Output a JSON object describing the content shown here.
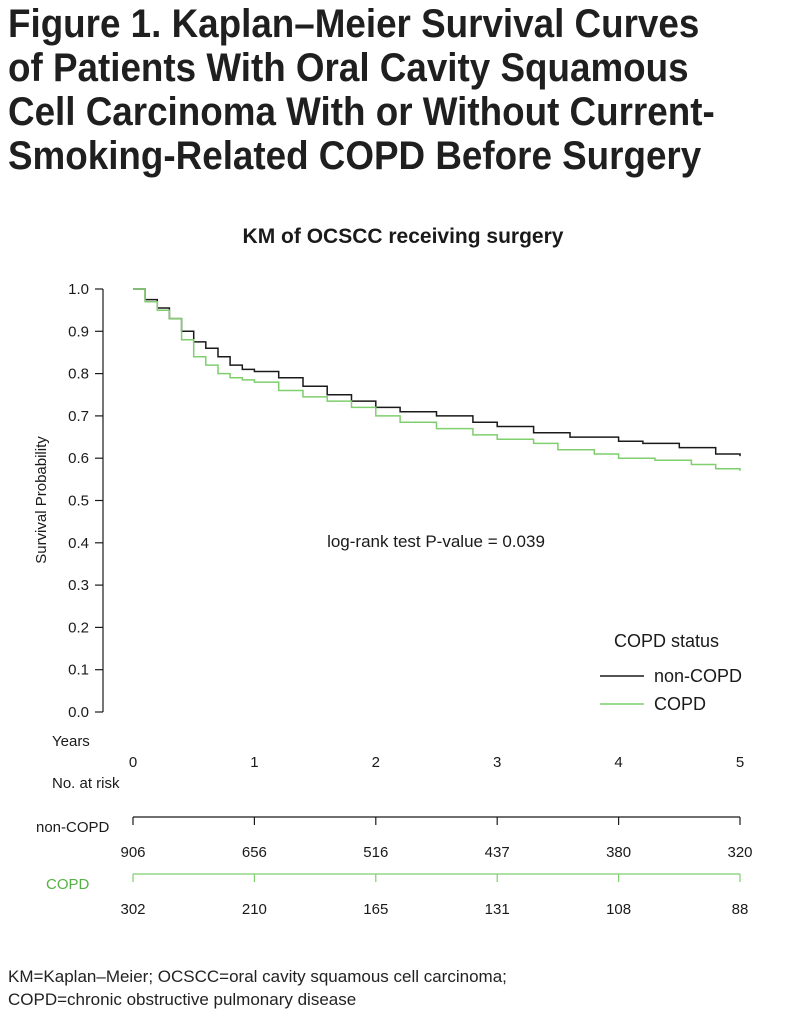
{
  "figure": {
    "title": "Figure 1. Kaplan–Meier Survival Curves of Patients With Oral Cavity Squamous Cell Carcinoma With or Without Current-Smoking-Related COPD Before Surgery",
    "footnote_lines": [
      "KM=Kaplan–Meier; OCSCC=oral cavity squamous cell carcinoma;",
      "COPD=chronic obstructive pulmonary disease"
    ]
  },
  "chart_data": {
    "type": "line",
    "subtype": "kaplan-meier step",
    "title": "KM of OCSCC receiving surgery",
    "xlabel": "Years",
    "ylabel": "Survival Probability",
    "xlim": [
      0,
      5
    ],
    "ylim": [
      0,
      1
    ],
    "xticks": [
      "0",
      "1",
      "2",
      "3",
      "4",
      "5"
    ],
    "yticks": [
      "0.0",
      "0.1",
      "0.2",
      "0.3",
      "0.4",
      "0.5",
      "0.6",
      "0.7",
      "0.8",
      "0.9",
      "1.0"
    ],
    "grid": false,
    "annotation": "log-rank test P-value = 0.039",
    "legend": {
      "title": "COPD status",
      "position": "bottom-right",
      "entries": [
        {
          "label": "non-COPD",
          "color": "#1a1a1a"
        },
        {
          "label": "COPD",
          "color": "#7fcf6e"
        }
      ]
    },
    "series": [
      {
        "name": "non-COPD",
        "color": "#1a1a1a",
        "x": [
          0,
          0.1,
          0.2,
          0.3,
          0.4,
          0.5,
          0.6,
          0.7,
          0.8,
          0.9,
          1.0,
          1.2,
          1.4,
          1.6,
          1.8,
          2.0,
          2.2,
          2.5,
          2.8,
          3.0,
          3.3,
          3.6,
          4.0,
          4.2,
          4.5,
          4.8,
          5.0
        ],
        "y": [
          1.0,
          0.975,
          0.955,
          0.93,
          0.9,
          0.875,
          0.86,
          0.84,
          0.82,
          0.81,
          0.805,
          0.79,
          0.77,
          0.75,
          0.735,
          0.72,
          0.71,
          0.7,
          0.685,
          0.675,
          0.66,
          0.65,
          0.64,
          0.635,
          0.625,
          0.61,
          0.605
        ]
      },
      {
        "name": "COPD",
        "color": "#7fcf6e",
        "x": [
          0,
          0.1,
          0.2,
          0.3,
          0.4,
          0.5,
          0.6,
          0.7,
          0.8,
          0.9,
          1.0,
          1.2,
          1.4,
          1.6,
          1.8,
          2.0,
          2.2,
          2.5,
          2.8,
          3.0,
          3.3,
          3.5,
          3.8,
          4.0,
          4.3,
          4.6,
          4.8,
          5.0
        ],
        "y": [
          1.0,
          0.97,
          0.95,
          0.93,
          0.88,
          0.84,
          0.82,
          0.8,
          0.79,
          0.785,
          0.78,
          0.76,
          0.745,
          0.735,
          0.72,
          0.7,
          0.685,
          0.67,
          0.655,
          0.645,
          0.635,
          0.62,
          0.61,
          0.6,
          0.595,
          0.585,
          0.575,
          0.57
        ]
      }
    ],
    "risk_table": {
      "title": "No. at risk",
      "times": [
        0,
        1,
        2,
        3,
        4,
        5
      ],
      "rows": [
        {
          "label": "non-COPD",
          "color": "#1a1a1a",
          "values": [
            "906",
            "656",
            "516",
            "437",
            "380",
            "320"
          ]
        },
        {
          "label": "COPD",
          "color": "#7fcf6e",
          "values": [
            "302",
            "210",
            "165",
            "131",
            "108",
            "88"
          ]
        }
      ]
    }
  }
}
